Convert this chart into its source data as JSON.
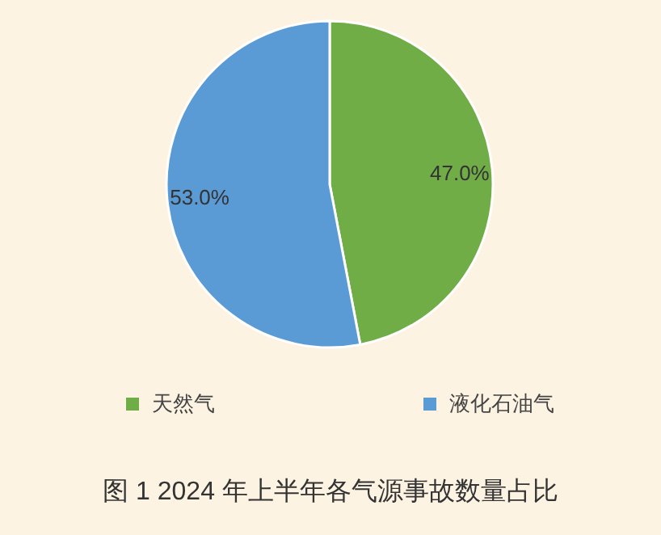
{
  "chart_data": {
    "type": "pie",
    "title": "图 1 2024 年上半年各气源事故数量占比",
    "categories": [
      "天然气",
      "液化石油气"
    ],
    "values": [
      47.0,
      53.0
    ],
    "colors": [
      "#70ad47",
      "#5b9bd5"
    ],
    "value_labels": [
      "47.0%",
      "53.0%"
    ],
    "legend": "bottom"
  }
}
